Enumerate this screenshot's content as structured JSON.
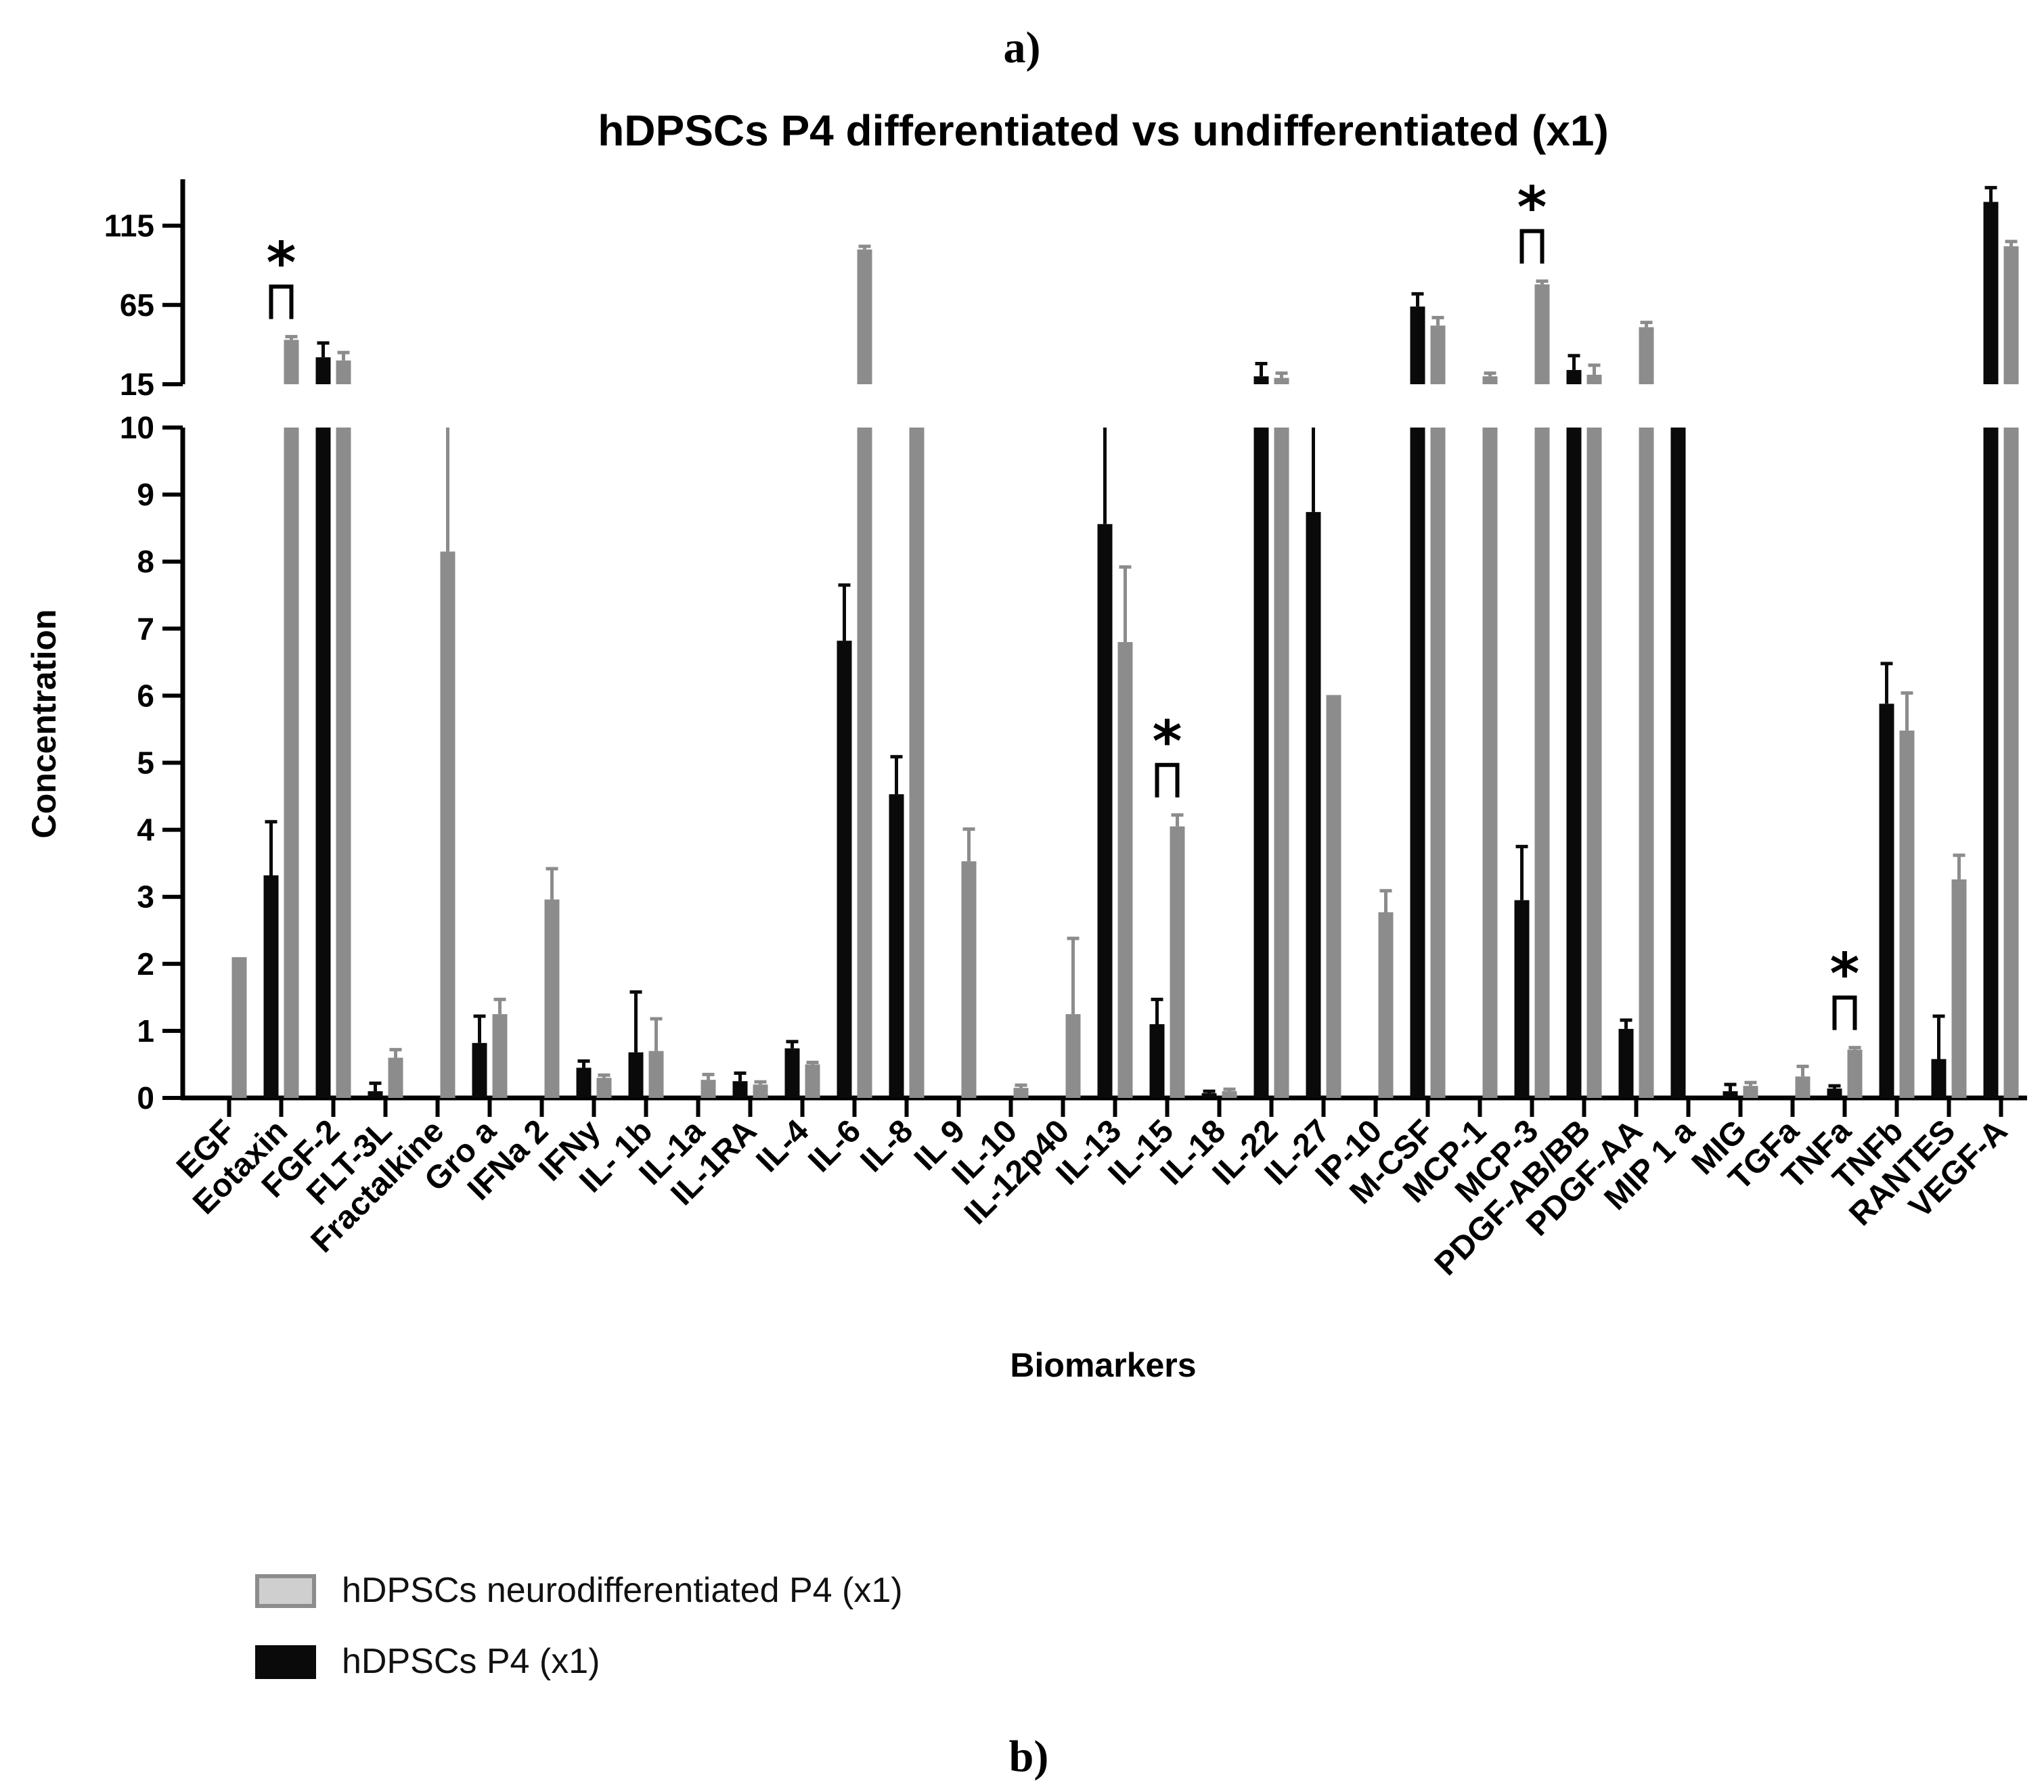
{
  "panel_labels": {
    "top": "a)",
    "bottom": "b)"
  },
  "colors": {
    "series_0": "#8c8c8c",
    "series_1": "#0a0a0a",
    "axis": "#000000"
  },
  "chart_data": {
    "type": "bar",
    "title": "hDPSCs P4 differentiated vs undifferentiated (x1)",
    "xlabel": "Biomarkers",
    "ylabel": "Concentration",
    "y_axis": {
      "broken": true,
      "lower_range": [
        0,
        10
      ],
      "upper_range": [
        15,
        140
      ],
      "lower_ticks": [
        0,
        1,
        2,
        3,
        4,
        5,
        6,
        7,
        8,
        9,
        10
      ],
      "upper_ticks": [
        15,
        65,
        115
      ]
    },
    "categories": [
      "EGF",
      "Eotaxin",
      "FGF-2",
      "FLT-3L",
      "Fractalkine",
      "Gro a",
      "IFNa 2",
      "IFNy",
      "IL- 1b",
      "IL-1a",
      "IL-1RA",
      "IL-4",
      "IL-6",
      "IL-8",
      "IL 9",
      "IL-10",
      "IL-12p40",
      "IL-13",
      "IL-15",
      "IL-18",
      "IL-22",
      "IL-27",
      "IP-10",
      "M-CSF",
      "MCP-1",
      "MCP-3",
      "PDGF-AB/BB",
      "PDGF-AA",
      "MIP 1 a",
      "MIG",
      "TGFa",
      "TNFa",
      "TNFb",
      "RANTES",
      "VEGF-A"
    ],
    "series": [
      {
        "name": "hDPSCs P4 (x1)",
        "values": [
          0,
          3.32,
          32,
          0.1,
          0,
          0.82,
          0,
          0.45,
          0.68,
          0,
          0.25,
          0.74,
          6.82,
          4.53,
          0,
          0,
          0,
          8.56,
          1.1,
          0.07,
          20,
          8.74,
          0,
          64,
          0,
          2.95,
          24,
          1.03,
          10,
          0.1,
          0,
          0.14,
          5.88,
          0.58,
          130
        ],
        "errors": [
          0,
          0.8,
          9,
          0.12,
          0,
          0.4,
          0,
          0.1,
          0.9,
          0,
          0.12,
          0.1,
          0.83,
          0.56,
          0,
          0,
          0,
          1.5,
          0.37,
          0.03,
          8,
          1.3,
          0,
          8,
          0,
          0.8,
          9,
          0.13,
          0,
          0.1,
          0,
          0.04,
          0.6,
          0.64,
          9
        ]
      },
      {
        "name": "hDPSCs neurodifferentiated P4 (x1)",
        "values": [
          2.1,
          43,
          30,
          0.6,
          8.15,
          1.25,
          2.96,
          0.3,
          0.7,
          0.27,
          0.2,
          0.5,
          100,
          10,
          3.53,
          0.15,
          1.25,
          6.8,
          4.05,
          0.1,
          19,
          6.01,
          2.77,
          52,
          20,
          78,
          21,
          51,
          0,
          0.18,
          0.32,
          0.72,
          5.48,
          3.26,
          102
        ],
        "errors": [
          0,
          2,
          5,
          0.12,
          1.9,
          0.22,
          0.46,
          0.04,
          0.48,
          0.08,
          0.04,
          0.03,
          2,
          0,
          0.48,
          0.04,
          1.13,
          1.12,
          0.17,
          0.03,
          3,
          0,
          0.32,
          5,
          2,
          2,
          6,
          3,
          0,
          0.05,
          0.15,
          0.03,
          0.56,
          0.36,
          3
        ]
      }
    ],
    "annotations": [
      {
        "category": "Eotaxin",
        "label": "*"
      },
      {
        "category": "IL-15",
        "label": "*"
      },
      {
        "category": "MCP-3",
        "label": "*"
      },
      {
        "category": "TNFa",
        "label": "*"
      }
    ],
    "legend": {
      "placement": "bottom-left",
      "entries": [
        "hDPSCs neurodifferentiated P4 (x1)",
        "hDPSCs P4 (x1)"
      ]
    },
    "grid": false
  }
}
